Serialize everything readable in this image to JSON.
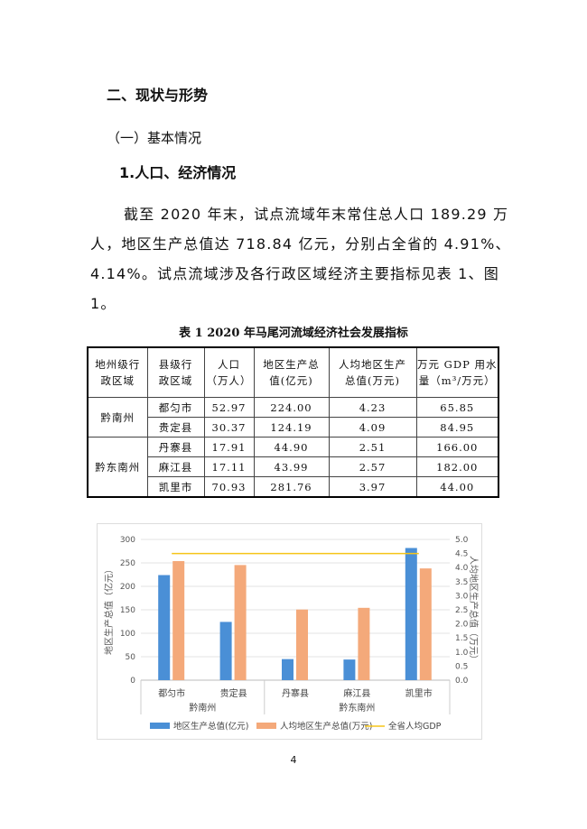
{
  "heading": "二、现状与形势",
  "subheading": "（一）基本情况",
  "section": "1.人口、经济情况",
  "paragraph_lines": [
    "截至 2020 年末，试点流域年末常住总人口 189.29 万",
    "人，地区生产总值达 718.84 亿元，分别占全省的 4.91%、",
    "4.14%。试点流域涉及各行政区域经济主要指标见表 1、图",
    "1。"
  ],
  "table": {
    "caption": "表 1   2020 年马尾河流域经济社会发展指标",
    "headers": [
      [
        "地州级行",
        "政区域"
      ],
      [
        "县级行",
        "政区域"
      ],
      [
        "人口",
        "（万人）"
      ],
      [
        "地区生产总",
        "值(亿元)"
      ],
      [
        "人均地区生产",
        "总值(万元)"
      ],
      [
        "万元 GDP 用水",
        "量（m³/万元）"
      ]
    ],
    "groups": [
      {
        "name": "黔南州",
        "rows": [
          [
            "都匀市",
            "52.97",
            "224.00",
            "4.23",
            "65.85"
          ],
          [
            "贵定县",
            "30.37",
            "124.19",
            "4.09",
            "84.95"
          ]
        ]
      },
      {
        "name": "黔东南州",
        "rows": [
          [
            "丹寨县",
            "17.91",
            "44.90",
            "2.51",
            "166.00"
          ],
          [
            "麻江县",
            "17.11",
            "43.99",
            "2.57",
            "182.00"
          ],
          [
            "凯里市",
            "70.93",
            "281.76",
            "3.97",
            "44.00"
          ]
        ]
      }
    ]
  },
  "chart_data": {
    "type": "bar",
    "categories": [
      "都匀市",
      "贵定县",
      "丹寨县",
      "麻江县",
      "凯里市"
    ],
    "groups": [
      {
        "name": "黔南州",
        "span": 2
      },
      {
        "name": "黔东南州",
        "span": 3
      }
    ],
    "series": [
      {
        "name": "地区生产总值(亿元)",
        "axis": "left",
        "color": "#4a8fd6",
        "values": [
          224.0,
          124.19,
          44.9,
          43.99,
          281.76
        ]
      },
      {
        "name": "人均地区生产总值(万元)",
        "axis": "right",
        "color": "#f4a97a",
        "values": [
          4.23,
          4.09,
          2.51,
          2.57,
          3.97
        ]
      },
      {
        "name": "全省人均GDP",
        "axis": "right",
        "type": "line",
        "color": "#f5c518",
        "values": [
          4.5,
          4.5,
          4.5,
          4.5,
          4.5
        ]
      }
    ],
    "ylabel": "地区生产总值（亿元）",
    "y2label": "人均地区生产总值（万元）",
    "ylim": [
      0,
      300
    ],
    "yticks": [
      "0",
      "50",
      "100",
      "150",
      "200",
      "250",
      "300"
    ],
    "y2lim": [
      0,
      5
    ],
    "y2ticks": [
      "0.0",
      "0.5",
      "1.0",
      "1.5",
      "2.0",
      "2.5",
      "3.0",
      "3.5",
      "4.0",
      "4.5",
      "5.0"
    ],
    "grid": true,
    "legend": "bottom"
  },
  "page_number": "4"
}
